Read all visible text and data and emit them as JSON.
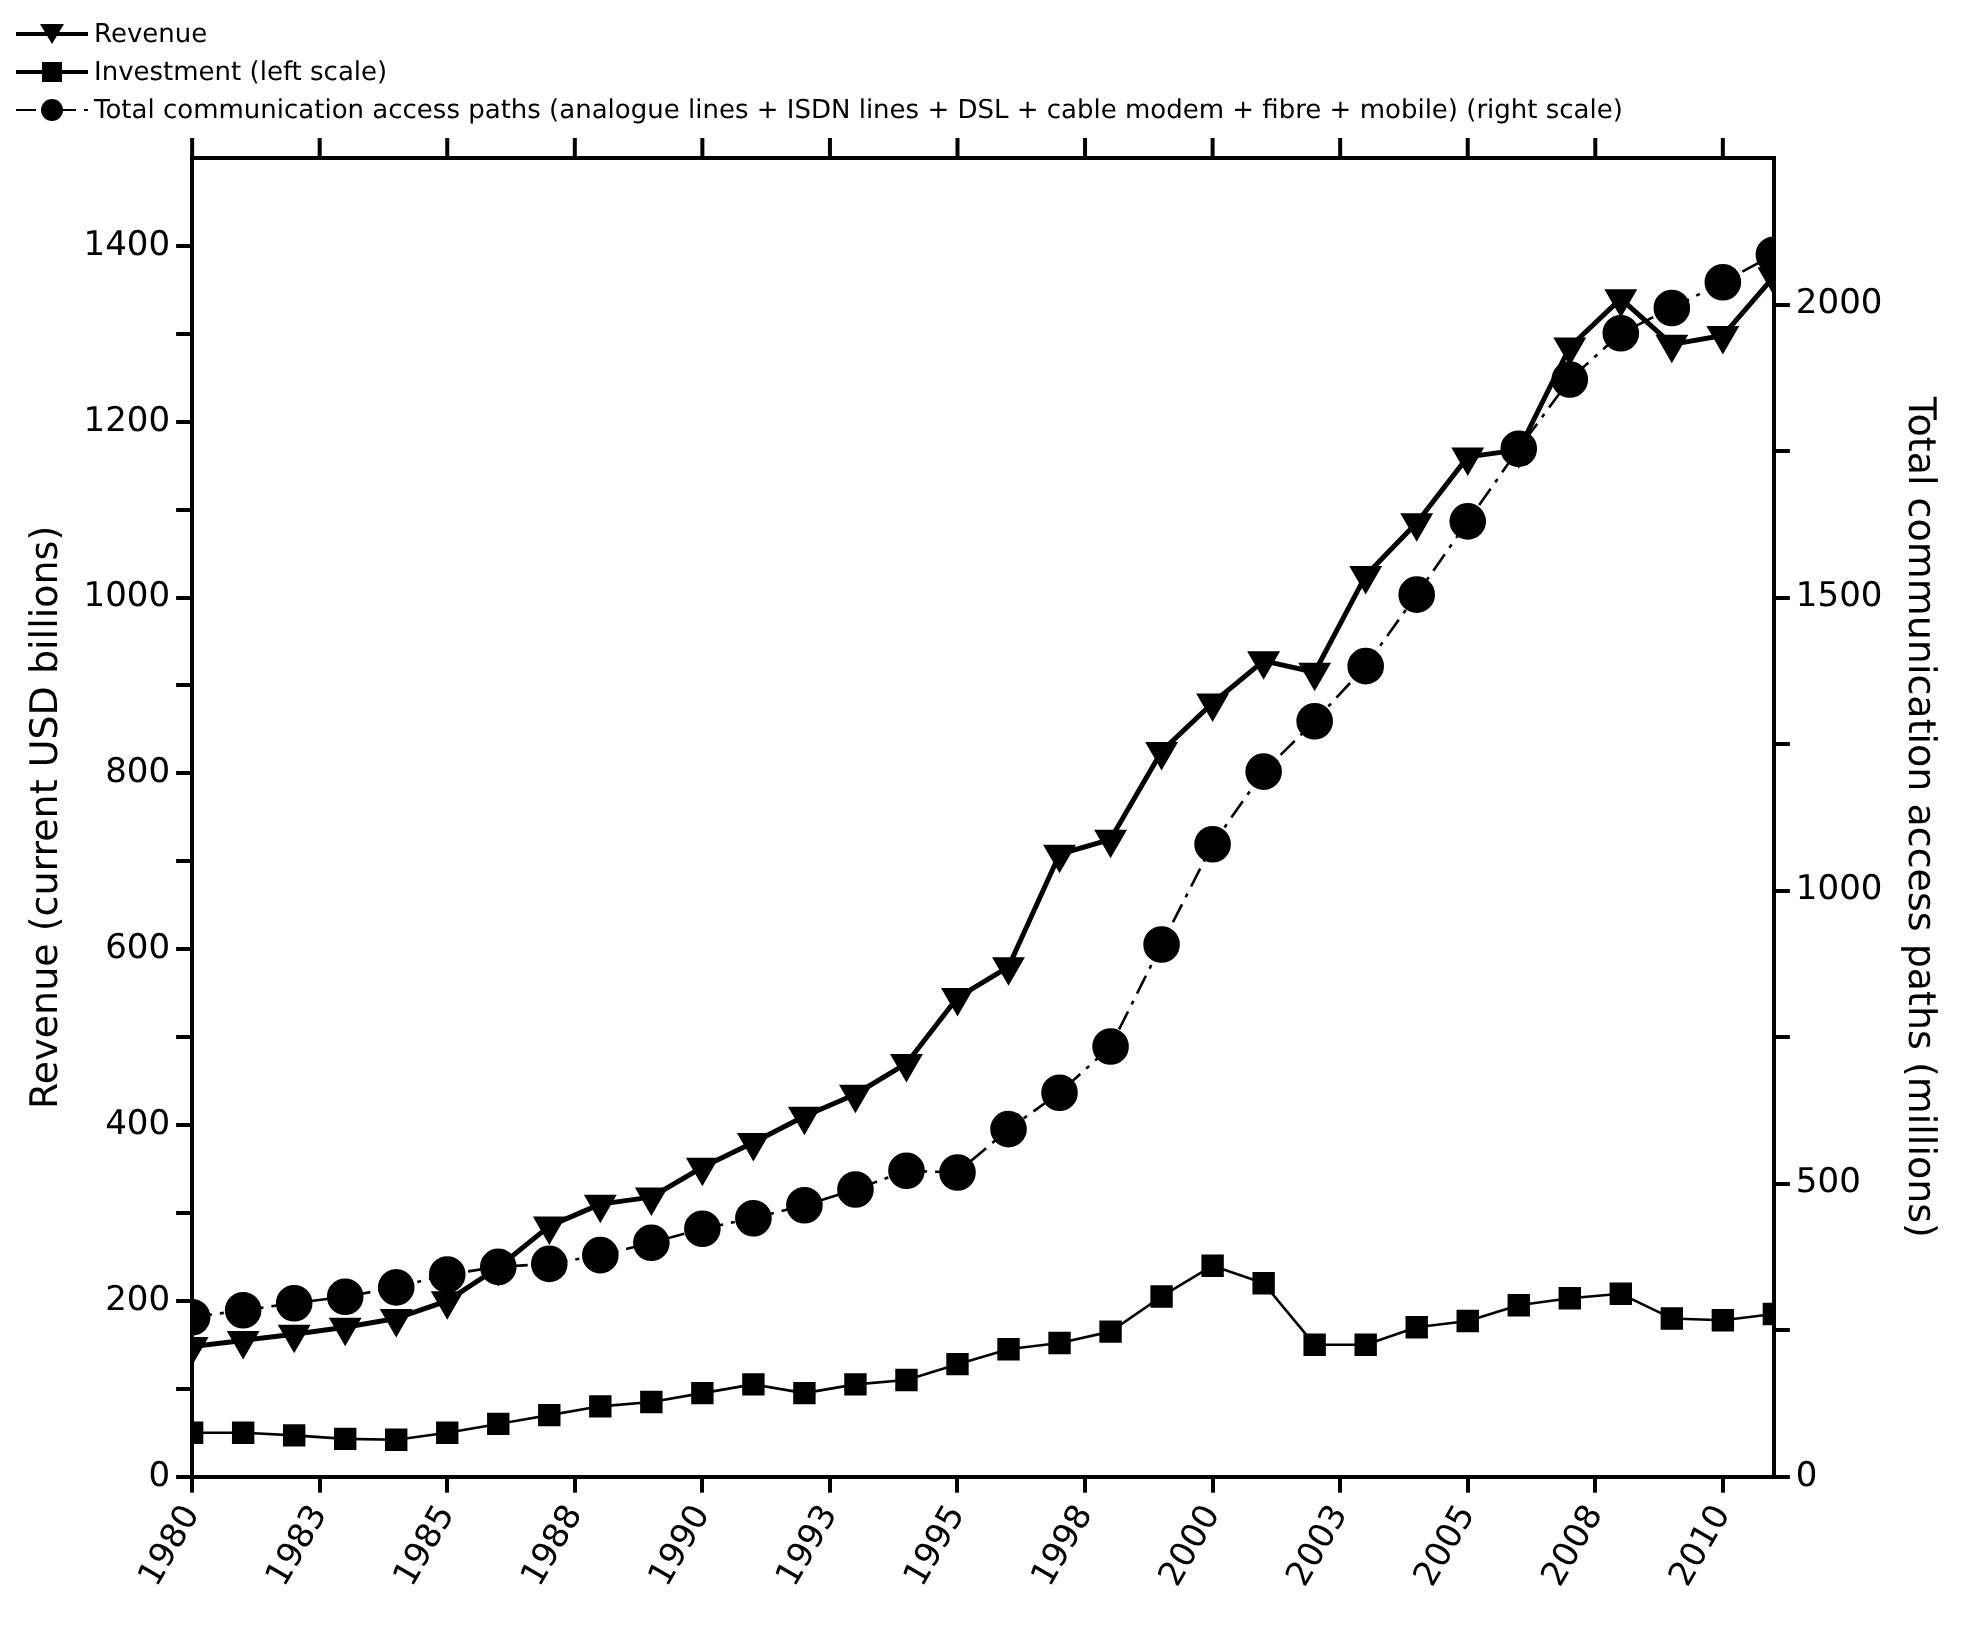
{
  "chart_data": {
    "type": "line",
    "x": [
      1980,
      1981,
      1982,
      1983,
      1984,
      1985,
      1986,
      1987,
      1988,
      1989,
      1990,
      1991,
      1992,
      1993,
      1994,
      1995,
      1996,
      1997,
      1998,
      1999,
      2000,
      2001,
      2002,
      2003,
      2004,
      2005,
      2006,
      2007,
      2008,
      2009,
      2010,
      2011
    ],
    "xlim": [
      1980,
      2011
    ],
    "xticks": [
      1980,
      {
        "value": 1982.5,
        "label": "1983"
      },
      1985,
      {
        "value": 1987.5,
        "label": "1988"
      },
      1990,
      {
        "value": 1992.5,
        "label": "1993"
      },
      1995,
      {
        "value": 1997.5,
        "label": "1998"
      },
      2000,
      {
        "value": 2002.5,
        "label": "2003"
      },
      2005,
      {
        "value": 2007.5,
        "label": "2008"
      },
      2010
    ],
    "ylabel": "Revenue (current USD billions)",
    "y2label": "Total communication access paths (millions)",
    "ylim": [
      0,
      1500
    ],
    "yticks": [
      0,
      {
        "value": 100,
        "label": null
      },
      200,
      {
        "value": 300,
        "label": null
      },
      400,
      {
        "value": 500,
        "label": null
      },
      600,
      {
        "value": 700,
        "label": null
      },
      800,
      {
        "value": 900,
        "label": null
      },
      1000,
      {
        "value": 1100,
        "label": null
      },
      1200,
      {
        "value": 1300,
        "label": null
      },
      1400
    ],
    "y2lim": [
      0,
      2250
    ],
    "y2ticks": [
      0,
      {
        "value": 250,
        "label": null
      },
      500,
      {
        "value": 750,
        "label": null
      },
      1000,
      {
        "value": 1250,
        "label": null
      },
      1500,
      {
        "value": 1750,
        "label": null
      },
      2000
    ],
    "grid": false,
    "legend": "top left",
    "series": [
      {
        "name": "Revenue",
        "color": "#000000",
        "marker": "triangle",
        "line_style": "solid",
        "values": [
          148,
          155,
          162,
          170,
          180,
          200,
          238,
          285,
          310,
          318,
          352,
          380,
          410,
          435,
          470,
          545,
          580,
          708,
          725,
          825,
          880,
          928,
          915,
          1025,
          1085,
          1160,
          1168,
          1285,
          1340,
          1288,
          1298,
          1365
        ]
      },
      {
        "name": "Investment (left scale)",
        "color": "#000000",
        "marker": "square",
        "line_style": "solid",
        "values": [
          50,
          50,
          47,
          43,
          42,
          50,
          60,
          70,
          80,
          85,
          95,
          105,
          95,
          105,
          110,
          128,
          145,
          152,
          165,
          205,
          240,
          220,
          150,
          150,
          170,
          177,
          195,
          203,
          208,
          180,
          178,
          185
        ]
      },
      {
        "name": "Total communication access paths (analogue lines + ISDN lines + DSL + cable modem + fibre + mobile) (right scale)",
        "color": "#000000",
        "marker": "circle",
        "line_style": "dashed",
        "axis": "y2",
        "values": [
          272,
          284,
          296,
          307,
          323,
          345,
          358,
          363,
          378,
          399,
          423,
          441,
          463,
          490,
          522,
          519,
          593,
          655,
          734,
          908,
          1079,
          1203,
          1289,
          1383,
          1505,
          1630,
          1754,
          1872,
          1951,
          1994,
          2038,
          2085
        ]
      }
    ]
  }
}
